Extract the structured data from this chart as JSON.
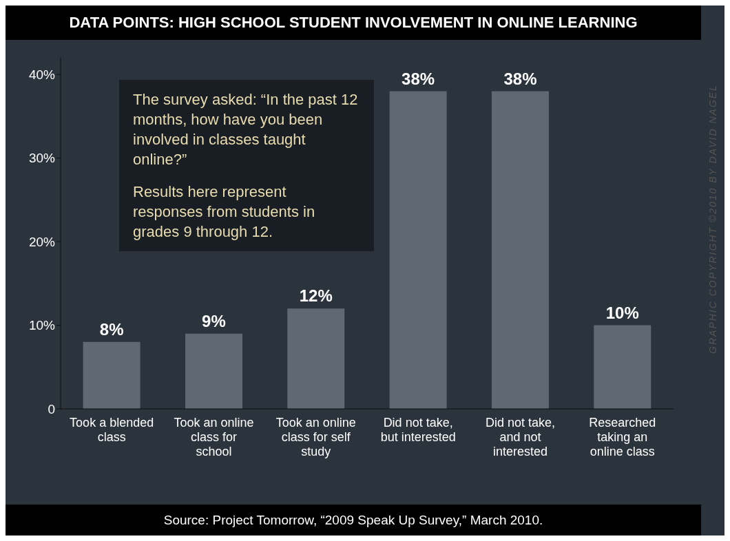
{
  "chart_data": {
    "type": "bar",
    "title": "DATA POINTS: HIGH SCHOOL STUDENT INVOLVEMENT IN ONLINE LEARNING",
    "categories": [
      "Took a blended class",
      "Took an online class for school",
      "Took an online class for self study",
      "Did not take, but interested",
      "Did not take, and not interested",
      "Researched taking an online class"
    ],
    "values": [
      8,
      9,
      12,
      38,
      38,
      10
    ],
    "value_labels": [
      "8%",
      "9%",
      "12%",
      "38%",
      "38%",
      "10%"
    ],
    "color": "#5f6873",
    "ylim": [
      0,
      42
    ],
    "yticks": [
      0,
      {
        "value": 10,
        "label": "10%"
      },
      {
        "value": 20,
        "label": "20%"
      },
      {
        "value": 30,
        "label": "30%"
      },
      {
        "value": 40,
        "label": "40%"
      }
    ],
    "annotations": [
      "The survey asked: “In the past 12 months, how have you been involved in classes taught online?”",
      "Results here represent responses from students in grades 9 through 12.",
      "Source:  Project Tomorrow, “2009 Speak Up Survey,” March 2010.",
      "GRAPHIC COPYRIGHT ©2010 BY DAVID NAGEL"
    ]
  }
}
